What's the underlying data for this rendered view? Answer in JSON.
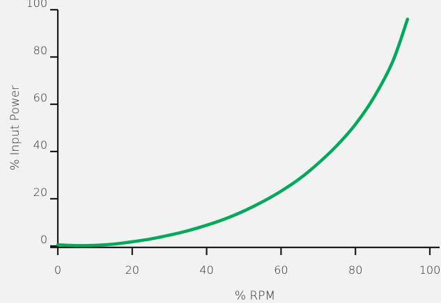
{
  "chart_data": {
    "type": "line",
    "xlabel": "% RPM",
    "ylabel": "% Input Power",
    "xlim": [
      0,
      100
    ],
    "ylim": [
      0,
      100
    ],
    "x_ticks": [
      0,
      20,
      40,
      60,
      80,
      100
    ],
    "y_ticks": [
      0,
      20,
      40,
      60,
      80,
      100
    ],
    "grid": false,
    "series": [
      {
        "color": "#00a85a",
        "x": [
          0,
          5,
          10,
          15,
          20,
          25,
          30,
          35,
          40,
          45,
          50,
          55,
          60,
          65,
          70,
          75,
          80,
          85,
          90,
          94
        ],
        "y": [
          0.5,
          0.2,
          0.3,
          0.8,
          1.8,
          3.0,
          4.6,
          6.5,
          8.8,
          11.5,
          14.8,
          18.7,
          23.2,
          28.5,
          35,
          42.5,
          51.5,
          63,
          78,
          96
        ]
      }
    ]
  }
}
